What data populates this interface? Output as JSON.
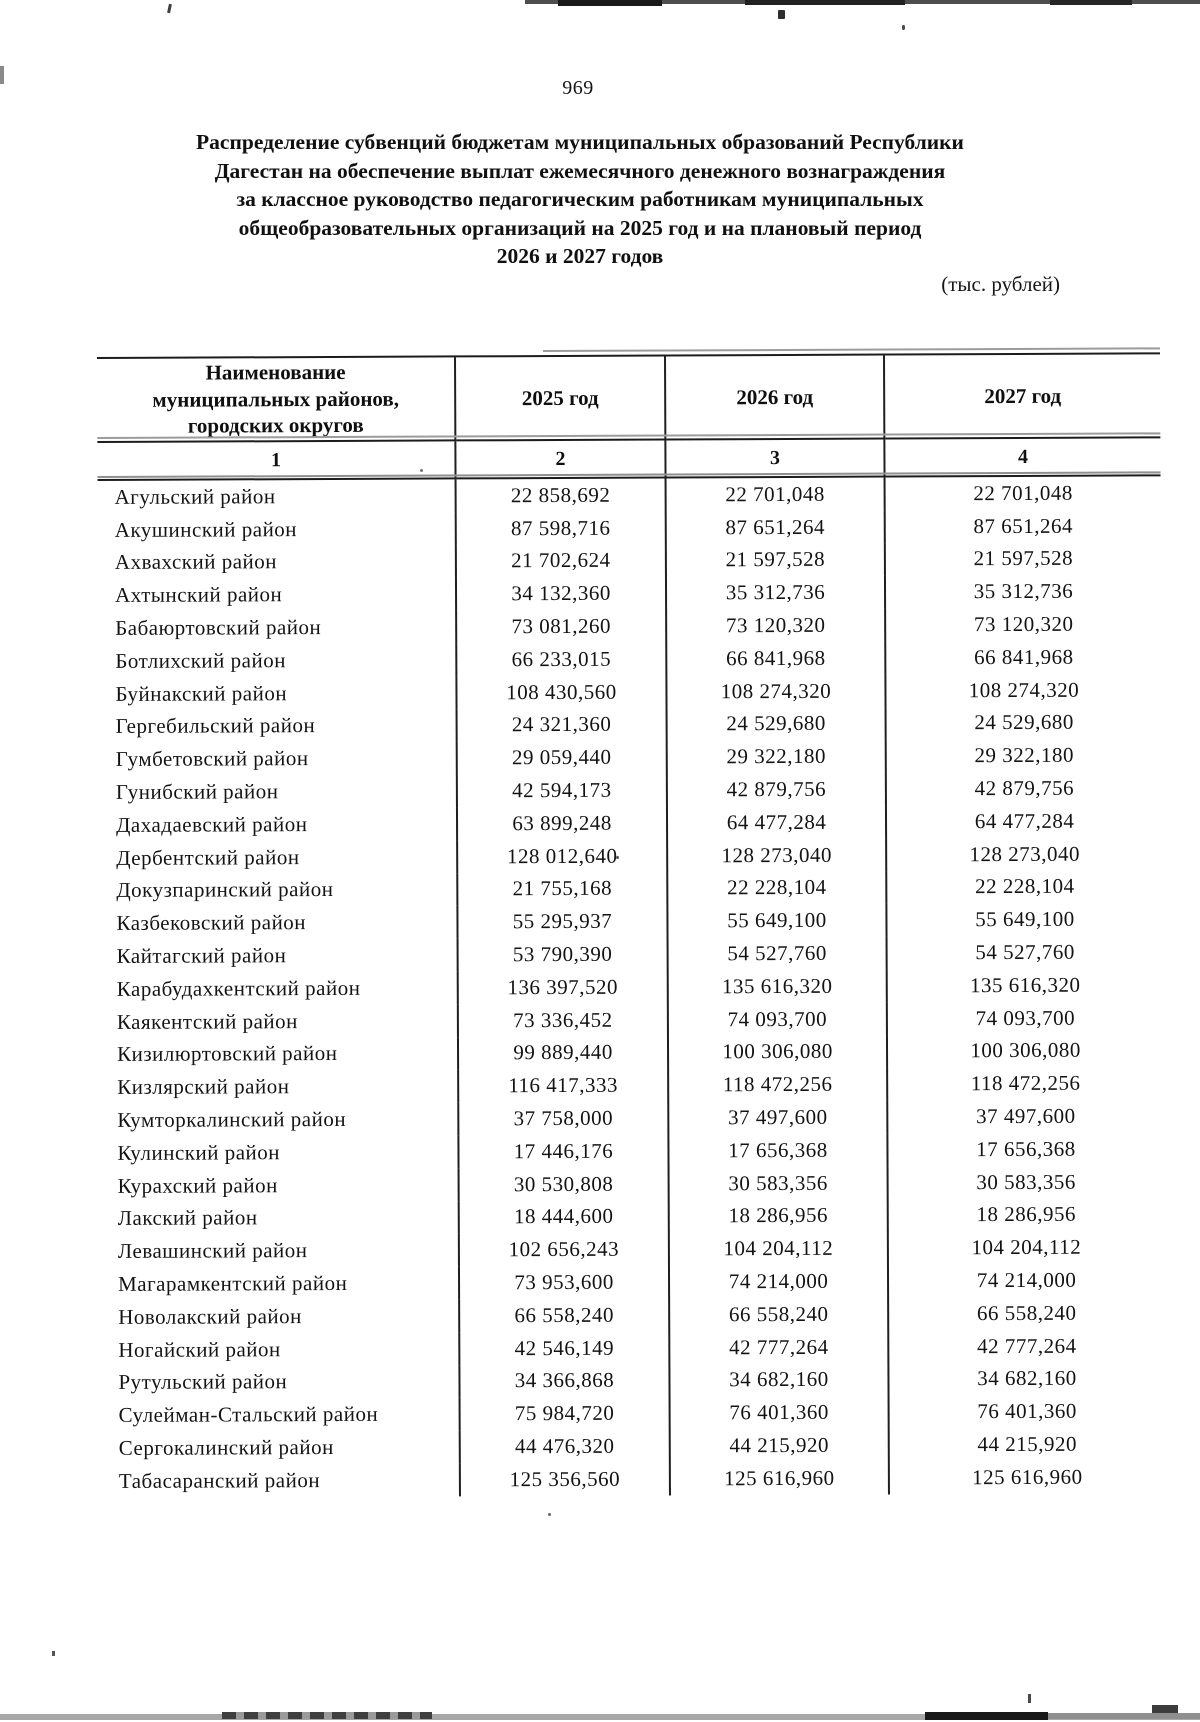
{
  "page": {
    "number": "969",
    "unit_note": "(тыс. рублей)"
  },
  "title": {
    "lines": [
      "Распределение субвенций бюджетам муниципальных образований Республики",
      "Дагестан на обеспечение выплат ежемесячного денежного вознаграждения",
      "за классное руководство педагогическим работникам муниципальных",
      "общеобразовательных организаций на 2025 год и на плановый период",
      "2026 и 2027 годов"
    ]
  },
  "table": {
    "header": {
      "name_lines": [
        "Наименование",
        "муниципальных районов,",
        "городских округов"
      ],
      "years": [
        "2025 год",
        "2026 год",
        "2027 год"
      ]
    },
    "column_numbers": [
      "1",
      "2",
      "3",
      "4"
    ],
    "rows": [
      {
        "name": "Агульский район",
        "y2025": "22 858,692",
        "y2026": "22 701,048",
        "y2027": "22 701,048"
      },
      {
        "name": "Акушинский район",
        "y2025": "87 598,716",
        "y2026": "87 651,264",
        "y2027": "87 651,264"
      },
      {
        "name": "Ахвахский район",
        "y2025": "21 702,624",
        "y2026": "21 597,528",
        "y2027": "21 597,528"
      },
      {
        "name": "Ахтынский район",
        "y2025": "34 132,360",
        "y2026": "35 312,736",
        "y2027": "35 312,736"
      },
      {
        "name": "Бабаюртовский район",
        "y2025": "73 081,260",
        "y2026": "73 120,320",
        "y2027": "73 120,320"
      },
      {
        "name": "Ботлихский район",
        "y2025": "66 233,015",
        "y2026": "66 841,968",
        "y2027": "66 841,968"
      },
      {
        "name": "Буйнакский район",
        "y2025": "108 430,560",
        "y2026": "108 274,320",
        "y2027": "108 274,320"
      },
      {
        "name": "Гергебильский район",
        "y2025": "24 321,360",
        "y2026": "24 529,680",
        "y2027": "24 529,680"
      },
      {
        "name": "Гумбетовский район",
        "y2025": "29 059,440",
        "y2026": "29 322,180",
        "y2027": "29 322,180"
      },
      {
        "name": "Гунибский район",
        "y2025": "42 594,173",
        "y2026": "42 879,756",
        "y2027": "42 879,756"
      },
      {
        "name": "Дахадаевский район",
        "y2025": "63 899,248",
        "y2026": "64 477,284",
        "y2027": "64 477,284"
      },
      {
        "name": "Дербентский район",
        "y2025": "128 012,640",
        "y2026": "128 273,040",
        "y2027": "128 273,040"
      },
      {
        "name": "Докузпаринский район",
        "y2025": "21 755,168",
        "y2026": "22 228,104",
        "y2027": "22 228,104"
      },
      {
        "name": "Казбековский район",
        "y2025": "55 295,937",
        "y2026": "55 649,100",
        "y2027": "55 649,100"
      },
      {
        "name": "Кайтагский район",
        "y2025": "53 790,390",
        "y2026": "54 527,760",
        "y2027": "54 527,760"
      },
      {
        "name": "Карабудахкентский район",
        "y2025": "136 397,520",
        "y2026": "135 616,320",
        "y2027": "135 616,320"
      },
      {
        "name": "Каякентский район",
        "y2025": "73 336,452",
        "y2026": "74 093,700",
        "y2027": "74 093,700"
      },
      {
        "name": "Кизилюртовский район",
        "y2025": "99 889,440",
        "y2026": "100 306,080",
        "y2027": "100 306,080"
      },
      {
        "name": "Кизлярский район",
        "y2025": "116 417,333",
        "y2026": "118 472,256",
        "y2027": "118 472,256"
      },
      {
        "name": "Кумторкалинский район",
        "y2025": "37 758,000",
        "y2026": "37 497,600",
        "y2027": "37 497,600"
      },
      {
        "name": "Кулинский район",
        "y2025": "17 446,176",
        "y2026": "17 656,368",
        "y2027": "17 656,368"
      },
      {
        "name": "Курахский район",
        "y2025": "30 530,808",
        "y2026": "30 583,356",
        "y2027": "30 583,356"
      },
      {
        "name": "Лакский район",
        "y2025": "18 444,600",
        "y2026": "18 286,956",
        "y2027": "18 286,956"
      },
      {
        "name": "Левашинский район",
        "y2025": "102 656,243",
        "y2026": "104 204,112",
        "y2027": "104 204,112"
      },
      {
        "name": "Магарамкентский район",
        "y2025": "73 953,600",
        "y2026": "74 214,000",
        "y2027": "74 214,000"
      },
      {
        "name": "Новолакский район",
        "y2025": "66 558,240",
        "y2026": "66 558,240",
        "y2027": "66 558,240"
      },
      {
        "name": "Ногайский район",
        "y2025": "42 546,149",
        "y2026": "42 777,264",
        "y2027": "42 777,264"
      },
      {
        "name": "Рутульский район",
        "y2025": "34 366,868",
        "y2026": "34 682,160",
        "y2027": "34 682,160"
      },
      {
        "name": "Сулейман-Стальский район",
        "y2025": "75 984,720",
        "y2026": "76 401,360",
        "y2027": "76 401,360"
      },
      {
        "name": "Сергокалинский район",
        "y2025": "44 476,320",
        "y2026": "44 215,920",
        "y2027": "44 215,920"
      },
      {
        "name": "Табасаранский район",
        "y2025": "125 356,560",
        "y2026": "125 616,960",
        "y2027": "125 616,960"
      }
    ]
  }
}
